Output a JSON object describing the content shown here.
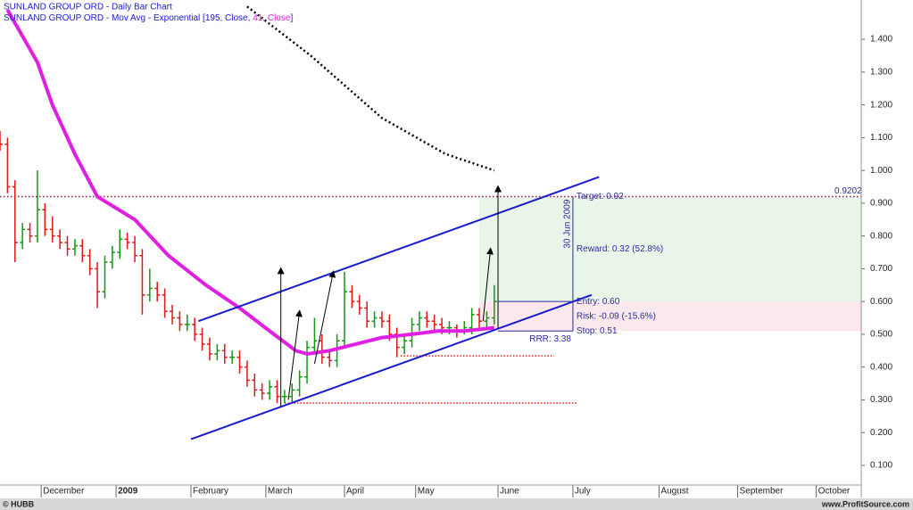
{
  "chart_data": {
    "type": "ohlc",
    "title": "SUNLAND GROUP ORD - Daily Bar Chart",
    "subtitle_parts": [
      "SUNLAND GROUP ORD - Mov Avg - Exponential [195, Close, ",
      "41, Close",
      "]"
    ],
    "up_color": "#109a10",
    "down_color": "#e01818",
    "x": [
      0,
      2,
      4,
      6,
      8,
      10,
      12,
      14,
      16,
      18,
      20,
      22,
      24,
      26,
      28,
      30,
      32,
      34,
      36,
      38,
      40,
      42,
      44,
      46,
      48,
      50,
      52,
      54,
      56,
      58,
      60,
      62,
      64,
      66,
      68,
      70,
      72,
      74,
      76,
      78,
      80,
      82,
      84,
      86,
      88,
      90,
      92,
      94,
      96,
      98,
      100,
      102,
      104,
      106,
      108,
      110,
      112,
      114,
      116,
      118,
      120,
      122,
      124,
      126,
      128,
      130,
      132
    ],
    "open": [
      1.1,
      1.08,
      0.95,
      0.78,
      0.82,
      0.8,
      0.88,
      0.82,
      0.8,
      0.78,
      0.76,
      0.77,
      0.74,
      0.7,
      0.63,
      0.72,
      0.75,
      0.79,
      0.78,
      0.74,
      0.62,
      0.64,
      0.62,
      0.57,
      0.55,
      0.53,
      0.53,
      0.5,
      0.47,
      0.44,
      0.45,
      0.43,
      0.43,
      0.4,
      0.36,
      0.33,
      0.32,
      0.34,
      0.31,
      0.31,
      0.33,
      0.37,
      0.46,
      0.48,
      0.43,
      0.42,
      0.48,
      0.63,
      0.6,
      0.58,
      0.54,
      0.55,
      0.54,
      0.5,
      0.46,
      0.48,
      0.53,
      0.55,
      0.54,
      0.53,
      0.52,
      0.52,
      0.51,
      0.52,
      0.56,
      0.54,
      0.55
    ],
    "high": [
      1.12,
      1.1,
      0.97,
      0.84,
      0.84,
      1.0,
      0.9,
      0.86,
      0.82,
      0.8,
      0.79,
      0.79,
      0.76,
      0.72,
      0.74,
      0.77,
      0.82,
      0.81,
      0.8,
      0.76,
      0.7,
      0.66,
      0.64,
      0.59,
      0.57,
      0.56,
      0.55,
      0.52,
      0.49,
      0.47,
      0.47,
      0.45,
      0.45,
      0.42,
      0.38,
      0.35,
      0.36,
      0.36,
      0.33,
      0.35,
      0.39,
      0.48,
      0.55,
      0.5,
      0.45,
      0.5,
      0.69,
      0.65,
      0.62,
      0.6,
      0.57,
      0.57,
      0.56,
      0.52,
      0.5,
      0.55,
      0.57,
      0.57,
      0.56,
      0.55,
      0.54,
      0.53,
      0.54,
      0.58,
      0.58,
      0.57,
      0.65
    ],
    "low": [
      1.06,
      0.93,
      0.72,
      0.76,
      0.78,
      0.78,
      0.8,
      0.78,
      0.76,
      0.74,
      0.74,
      0.72,
      0.68,
      0.58,
      0.61,
      0.7,
      0.73,
      0.76,
      0.72,
      0.56,
      0.6,
      0.6,
      0.55,
      0.53,
      0.51,
      0.51,
      0.48,
      0.45,
      0.42,
      0.42,
      0.41,
      0.41,
      0.38,
      0.34,
      0.31,
      0.3,
      0.3,
      0.29,
      0.29,
      0.29,
      0.31,
      0.35,
      0.44,
      0.41,
      0.4,
      0.4,
      0.46,
      0.58,
      0.56,
      0.52,
      0.52,
      0.52,
      0.48,
      0.43,
      0.44,
      0.46,
      0.51,
      0.52,
      0.51,
      0.5,
      0.5,
      0.49,
      0.5,
      0.5,
      0.52,
      0.52,
      0.53
    ],
    "close": [
      1.08,
      0.95,
      0.78,
      0.82,
      0.8,
      0.88,
      0.82,
      0.8,
      0.78,
      0.76,
      0.77,
      0.74,
      0.7,
      0.63,
      0.72,
      0.75,
      0.79,
      0.78,
      0.74,
      0.62,
      0.64,
      0.62,
      0.57,
      0.55,
      0.53,
      0.53,
      0.5,
      0.47,
      0.44,
      0.45,
      0.43,
      0.43,
      0.4,
      0.36,
      0.33,
      0.32,
      0.34,
      0.31,
      0.31,
      0.33,
      0.37,
      0.46,
      0.48,
      0.43,
      0.42,
      0.48,
      0.63,
      0.6,
      0.58,
      0.54,
      0.55,
      0.54,
      0.5,
      0.46,
      0.48,
      0.53,
      0.55,
      0.54,
      0.53,
      0.52,
      0.52,
      0.51,
      0.52,
      0.56,
      0.54,
      0.55,
      0.6
    ],
    "xlim": [
      0,
      230
    ],
    "xticks": [
      {
        "value": 11,
        "label": "December"
      },
      {
        "value": 31,
        "label": "2009"
      },
      {
        "value": 51,
        "label": "February"
      },
      {
        "value": 71,
        "label": "March"
      },
      {
        "value": 92,
        "label": "April"
      },
      {
        "value": 111,
        "label": "May"
      },
      {
        "value": 133,
        "label": "June"
      },
      {
        "value": 153,
        "label": "July"
      },
      {
        "value": 176,
        "label": "August"
      },
      {
        "value": 197,
        "label": "September"
      },
      {
        "value": 218,
        "label": "October"
      }
    ],
    "ylim": [
      0.04,
      1.52
    ],
    "yticks": [
      {
        "value": 0.1,
        "label": "0.100"
      },
      {
        "value": 0.2,
        "label": "0.200"
      },
      {
        "value": 0.3,
        "label": "0.300"
      },
      {
        "value": 0.4,
        "label": "0.400"
      },
      {
        "value": 0.5,
        "label": "0.500"
      },
      {
        "value": 0.6,
        "label": "0.600"
      },
      {
        "value": 0.7,
        "label": "0.700"
      },
      {
        "value": 0.8,
        "label": "0.800"
      },
      {
        "value": 0.9,
        "label": "0.900"
      },
      {
        "value": 1.0,
        "label": "1.000"
      },
      {
        "value": 1.1,
        "label": "1.100"
      },
      {
        "value": 1.2,
        "label": "1.200"
      },
      {
        "value": 1.3,
        "label": "1.300"
      },
      {
        "value": 1.4,
        "label": "1.400"
      }
    ],
    "ma": {
      "color": "#e020e0",
      "x": [
        2,
        5,
        10,
        14,
        20,
        26,
        36,
        45,
        55,
        64,
        72,
        79,
        82,
        88,
        95,
        102,
        110,
        117,
        124,
        132
      ],
      "values": [
        1.49,
        1.43,
        1.33,
        1.2,
        1.05,
        0.92,
        0.85,
        0.74,
        0.65,
        0.58,
        0.51,
        0.45,
        0.44,
        0.45,
        0.47,
        0.49,
        0.5,
        0.51,
        0.51,
        0.52
      ]
    },
    "projection": {
      "color": "#000000",
      "x": [
        66,
        83,
        102,
        119,
        132
      ],
      "values": [
        1.5,
        1.35,
        1.16,
        1.05,
        1.0
      ]
    },
    "channel": {
      "color": "#1a1ad0",
      "lines": [
        {
          "x": [
            53,
            160
          ],
          "y": [
            0.54,
            0.98
          ]
        },
        {
          "x": [
            51,
            158
          ],
          "y": [
            0.18,
            0.62
          ]
        }
      ]
    },
    "arrows": {
      "color": "#000000",
      "items": [
        {
          "x": [
            75,
            75
          ],
          "y": [
            0.28,
            0.7
          ]
        },
        {
          "x": [
            77,
            80
          ],
          "y": [
            0.3,
            0.57
          ]
        },
        {
          "x": [
            84,
            89
          ],
          "y": [
            0.41,
            0.69
          ]
        },
        {
          "x": [
            129,
            131
          ],
          "y": [
            0.54,
            0.76
          ]
        },
        {
          "x": [
            133,
            133
          ],
          "y": [
            0.52,
            0.95
          ]
        }
      ]
    },
    "support_lines": {
      "color": "#e01818",
      "items": [
        {
          "x": [
            76,
            154
          ],
          "y": [
            0.29,
            0.29
          ]
        },
        {
          "x": [
            107,
            148
          ],
          "y": [
            0.434,
            0.434
          ]
        }
      ]
    },
    "target_line": {
      "value": 0.9202,
      "color": "#8b1a5a"
    },
    "trade": {
      "color": "#2a2aa0",
      "x": [
        133,
        153
      ],
      "zone_x": [
        128,
        230
      ],
      "target": {
        "value": 0.92,
        "label": "Target: 0.92"
      },
      "entry": {
        "value": 0.6,
        "label": "Entry: 0.60"
      },
      "stop": {
        "value": 0.51,
        "label": "Stop: 0.51"
      },
      "reward_label": "Reward: 0.32 (52.8%)",
      "risk_label": "Risk: -0.09 (-15.6%)",
      "rrr_label": "RRR: 3.38",
      "date_label": "30 Jun 2009"
    }
  },
  "footer": {
    "left": "© HUBB",
    "right": "www.ProfitSource.com"
  }
}
